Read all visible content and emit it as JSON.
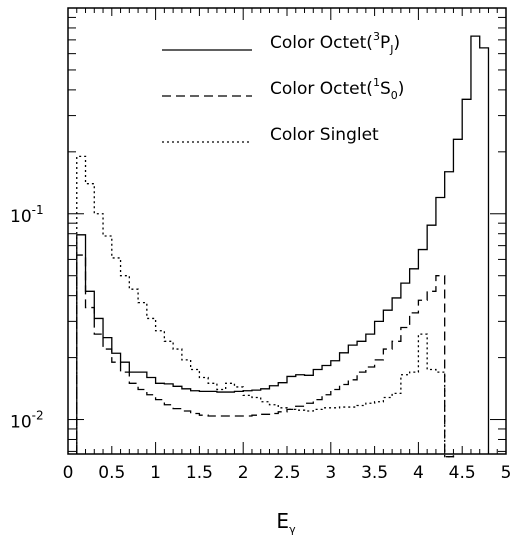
{
  "chart_data": {
    "type": "line",
    "title": "",
    "xlabel": "E",
    "xlabel_subscript": "γ",
    "ylabel": "",
    "xlim": [
      0,
      5
    ],
    "ylim": [
      0.0068,
      1.0
    ],
    "yscale": "log",
    "grid": false,
    "legend_position": "top-right",
    "x_ticks": [
      "0",
      "0.5",
      "1",
      "1.5",
      "2",
      "2.5",
      "3",
      "3.5",
      "4",
      "4.5",
      "5"
    ],
    "y_ticks": [
      {
        "value": 0.1,
        "base": "10",
        "exp": "-1"
      },
      {
        "value": 0.01,
        "base": "10",
        "exp": "-2"
      }
    ],
    "step": 0.1,
    "series": [
      {
        "name": "Color Octet(³P_J)",
        "legend_parts": [
          "Color Octet(",
          "3",
          "P",
          "J",
          ")"
        ],
        "style": "solid",
        "x_start": 0.1,
        "values": [
          0.079,
          0.042,
          0.031,
          0.025,
          0.021,
          0.019,
          0.017,
          0.017,
          0.016,
          0.015,
          0.0149,
          0.0145,
          0.0141,
          0.0138,
          0.0137,
          0.0137,
          0.0136,
          0.0136,
          0.0137,
          0.0138,
          0.0139,
          0.0141,
          0.0146,
          0.0151,
          0.0162,
          0.0165,
          0.0164,
          0.0175,
          0.0183,
          0.0193,
          0.0211,
          0.023,
          0.024,
          0.026,
          0.03,
          0.034,
          0.039,
          0.046,
          0.054,
          0.067,
          0.088,
          0.12,
          0.16,
          0.23,
          0.36,
          0.73,
          0.64
        ]
      },
      {
        "name": "Color Octet(¹S_0)",
        "legend_parts": [
          "Color Octet(",
          "1",
          "S",
          "0",
          ")"
        ],
        "style": "dashed",
        "x_start": 0.1,
        "values": [
          0.063,
          0.035,
          0.026,
          0.022,
          0.019,
          0.017,
          0.015,
          0.014,
          0.0132,
          0.0125,
          0.0118,
          0.0113,
          0.011,
          0.0107,
          0.0105,
          0.0104,
          0.0104,
          0.0104,
          0.0104,
          0.0104,
          0.0105,
          0.0106,
          0.0107,
          0.0109,
          0.0112,
          0.0116,
          0.012,
          0.0125,
          0.0132,
          0.014,
          0.0148,
          0.0156,
          0.017,
          0.018,
          0.0195,
          0.022,
          0.024,
          0.028,
          0.033,
          0.038,
          0.042,
          0.05,
          0.0066
        ]
      },
      {
        "name": "Color Singlet",
        "legend_parts": [
          "Color Singlet",
          "",
          "",
          "",
          ""
        ],
        "style": "dotted",
        "x_start": 0.1,
        "values": [
          0.19,
          0.14,
          0.1,
          0.078,
          0.061,
          0.05,
          0.043,
          0.037,
          0.031,
          0.027,
          0.024,
          0.022,
          0.0195,
          0.0175,
          0.016,
          0.015,
          0.014,
          0.015,
          0.0144,
          0.0131,
          0.0128,
          0.0122,
          0.0118,
          0.0114,
          0.0112,
          0.0111,
          0.011,
          0.0112,
          0.0114,
          0.0114,
          0.0115,
          0.0115,
          0.0117,
          0.012,
          0.0122,
          0.0128,
          0.0134,
          0.0165,
          0.017,
          0.026,
          0.0175,
          0.017,
          0.0066
        ]
      }
    ]
  }
}
